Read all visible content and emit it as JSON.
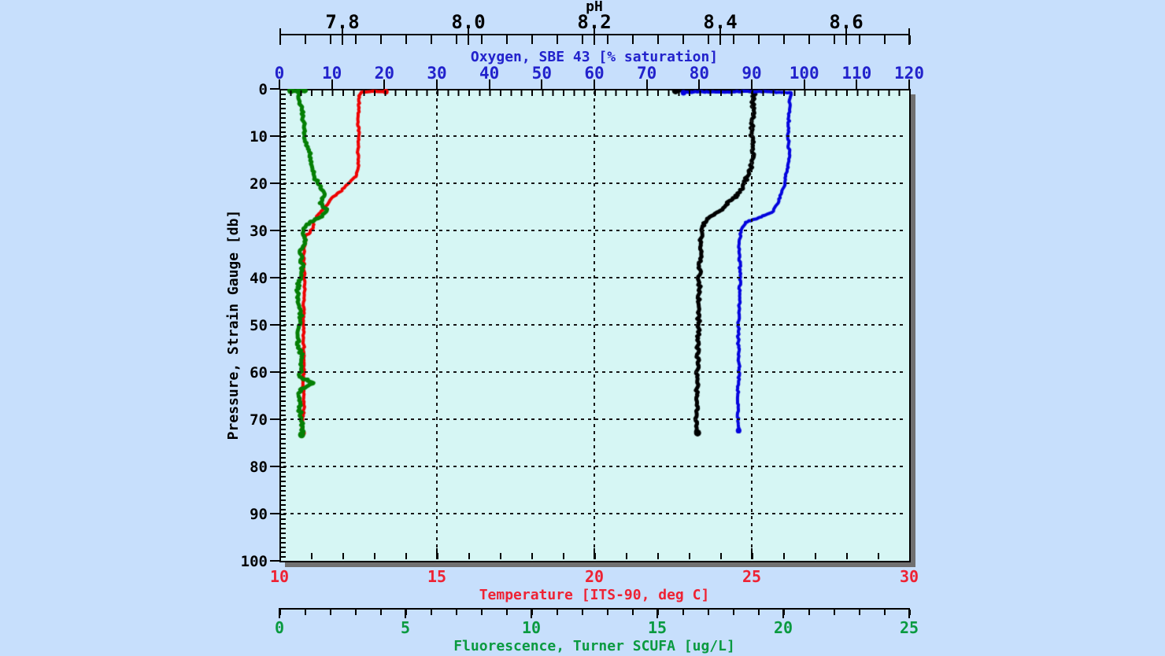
{
  "window": {
    "background": "#c7dffc",
    "plot_shadow_color": "#707070"
  },
  "chart_data": {
    "type": "line",
    "description": "CTD profile plot: four vertical profiles versus pressure",
    "plot_bg": "#d6f6f4",
    "grid": {
      "style": "dashed",
      "horizontal_pressure_lines": [
        10,
        20,
        30,
        40,
        50,
        60,
        70,
        80,
        90
      ],
      "vertical_temperature_lines": [
        15,
        20,
        25
      ]
    },
    "axes": {
      "pressure": {
        "title": "Pressure, Strain Gauge [db]",
        "side": "left",
        "min": 0,
        "max": 100,
        "inverted": true,
        "ticks": [
          0,
          10,
          20,
          30,
          40,
          50,
          60,
          70,
          80,
          90,
          100
        ],
        "tick_labels": [
          "0",
          "10",
          "20",
          "30",
          "40",
          "50",
          "60",
          "70",
          "80",
          "90",
          "100"
        ],
        "minor_step": 1,
        "color": "#000000"
      },
      "ph": {
        "title": "pH",
        "side": "top-outer",
        "min": 7.7,
        "max": 8.7,
        "ticks": [
          7.8,
          8.0,
          8.2,
          8.4,
          8.6
        ],
        "tick_labels": [
          "7.8",
          "8.0",
          "8.2",
          "8.4",
          "8.6"
        ],
        "minor_step": 0.04,
        "color": "#000000"
      },
      "oxygen": {
        "title": "Oxygen, SBE 43 [% saturation]",
        "side": "top",
        "min": 0,
        "max": 120,
        "ticks": [
          0,
          10,
          20,
          30,
          40,
          50,
          60,
          70,
          80,
          90,
          100,
          110,
          120
        ],
        "tick_labels": [
          "0",
          "10",
          "20",
          "30",
          "40",
          "50",
          "60",
          "70",
          "80",
          "90",
          "100",
          "110",
          "120"
        ],
        "minor_step": 2,
        "color": "#2222cc"
      },
      "temperature": {
        "title": "Temperature [ITS-90, deg C]",
        "side": "bottom",
        "min": 10,
        "max": 30,
        "ticks": [
          10,
          15,
          20,
          25,
          30
        ],
        "tick_labels": [
          "10",
          "15",
          "20",
          "25",
          "30"
        ],
        "minor_step": 1,
        "color": "#ee2233"
      },
      "fluorescence": {
        "title": "Fluorescence, Turner SCUFA [ug/L]",
        "side": "bottom-outer",
        "min": 0,
        "max": 25,
        "ticks": [
          0,
          5,
          10,
          15,
          20,
          25
        ],
        "tick_labels": [
          "0",
          "5",
          "10",
          "15",
          "20",
          "25"
        ],
        "minor_step": 1,
        "color": "#0a9a40"
      }
    },
    "series": [
      {
        "name": "Temperature",
        "x_axis": "temperature",
        "color": "#ee0000",
        "width": 4,
        "points": [
          [
            13.38,
            0.6
          ],
          [
            12.9,
            0.55
          ],
          [
            12.6,
            0.7
          ],
          [
            12.52,
            1.5
          ],
          [
            12.53,
            4.0
          ],
          [
            12.5,
            7.0
          ],
          [
            12.52,
            10.0
          ],
          [
            12.49,
            13.0
          ],
          [
            12.52,
            16.2
          ],
          [
            12.45,
            18.2
          ],
          [
            12.2,
            20.0
          ],
          [
            11.93,
            21.8
          ],
          [
            11.65,
            23.2
          ],
          [
            11.53,
            24.5
          ],
          [
            11.3,
            26.2
          ],
          [
            11.1,
            28.0
          ],
          [
            11.03,
            29.8
          ],
          [
            10.83,
            31.2
          ],
          [
            10.78,
            34.0
          ],
          [
            10.78,
            36.2
          ],
          [
            10.8,
            42.8
          ],
          [
            10.75,
            49.5
          ],
          [
            10.78,
            56.2
          ],
          [
            10.75,
            62.8
          ],
          [
            10.78,
            67.8
          ],
          [
            10.7,
            71.2
          ],
          [
            10.75,
            72.9
          ]
        ]
      },
      {
        "name": "Fluorescence",
        "x_axis": "fluorescence",
        "color": "#047f04",
        "width": 5,
        "points": [
          [
            0.45,
            0.35
          ],
          [
            1.05,
            0.4
          ],
          [
            0.7,
            0.6
          ],
          [
            0.75,
            2.0
          ],
          [
            0.88,
            4.5
          ],
          [
            0.97,
            8.2
          ],
          [
            1.0,
            10.0
          ],
          [
            1.13,
            12.3
          ],
          [
            1.2,
            14.0
          ],
          [
            1.28,
            16.2
          ],
          [
            1.35,
            18.0
          ],
          [
            1.5,
            19.8
          ],
          [
            1.62,
            21.0
          ],
          [
            1.8,
            22.3
          ],
          [
            1.6,
            24.2
          ],
          [
            1.88,
            25.8
          ],
          [
            1.7,
            26.8
          ],
          [
            1.4,
            27.8
          ],
          [
            1.05,
            29.0
          ],
          [
            0.95,
            29.8
          ],
          [
            1.05,
            32.0
          ],
          [
            0.8,
            34.5
          ],
          [
            0.9,
            37.0
          ],
          [
            0.88,
            39.5
          ],
          [
            0.72,
            42.0
          ],
          [
            0.75,
            44.5
          ],
          [
            0.85,
            47.0
          ],
          [
            0.84,
            49.5
          ],
          [
            0.72,
            52.0
          ],
          [
            0.76,
            54.5
          ],
          [
            0.9,
            57.0
          ],
          [
            0.86,
            59.5
          ],
          [
            0.8,
            61.0
          ],
          [
            1.35,
            62.3
          ],
          [
            0.82,
            63.7
          ],
          [
            0.78,
            66.0
          ],
          [
            0.8,
            67.8
          ],
          [
            0.85,
            70.0
          ],
          [
            0.92,
            72.0
          ],
          [
            0.88,
            73.3
          ]
        ]
      },
      {
        "name": "pH",
        "x_axis": "ph",
        "color": "#000000",
        "width": 5,
        "points": [
          [
            8.329,
            0.4
          ],
          [
            8.36,
            0.25
          ],
          [
            8.381,
            0.3
          ],
          [
            8.41,
            0.45
          ],
          [
            8.44,
            0.35
          ],
          [
            8.454,
            0.8
          ],
          [
            8.452,
            2.5
          ],
          [
            8.453,
            4.5
          ],
          [
            8.45,
            7.0
          ],
          [
            8.45,
            9.5
          ],
          [
            8.452,
            12.0
          ],
          [
            8.453,
            14.5
          ],
          [
            8.448,
            17.0
          ],
          [
            8.438,
            20.0
          ],
          [
            8.428,
            22.5
          ],
          [
            8.415,
            23.7
          ],
          [
            8.4,
            25.8
          ],
          [
            8.379,
            27.5
          ],
          [
            8.371,
            29.5
          ],
          [
            8.369,
            32.8
          ],
          [
            8.368,
            36.0
          ],
          [
            8.367,
            39.5
          ],
          [
            8.366,
            46.2
          ],
          [
            8.365,
            52.8
          ],
          [
            8.364,
            59.5
          ],
          [
            8.363,
            66.2
          ],
          [
            8.361,
            70.3
          ],
          [
            8.364,
            72.9
          ]
        ]
      },
      {
        "name": "Oxygen",
        "x_axis": "oxygen",
        "color": "#0404dd",
        "width": 4,
        "points": [
          [
            77.0,
            0.8
          ],
          [
            80.0,
            0.6
          ],
          [
            84.8,
            0.7
          ],
          [
            89.0,
            0.5
          ],
          [
            93.0,
            0.6
          ],
          [
            97.5,
            0.8
          ],
          [
            97.3,
            2.0
          ],
          [
            97.2,
            4.5
          ],
          [
            96.9,
            9.5
          ],
          [
            97.2,
            14.5
          ],
          [
            96.6,
            17.8
          ],
          [
            96.3,
            20.0
          ],
          [
            95.6,
            22.3
          ],
          [
            94.8,
            24.5
          ],
          [
            93.8,
            26.2
          ],
          [
            91.5,
            27.2
          ],
          [
            88.8,
            28.3
          ],
          [
            87.9,
            30.0
          ],
          [
            87.6,
            32.8
          ],
          [
            87.8,
            39.5
          ],
          [
            87.6,
            46.2
          ],
          [
            87.4,
            52.8
          ],
          [
            87.6,
            59.5
          ],
          [
            87.3,
            66.2
          ],
          [
            87.5,
            72.4
          ]
        ]
      }
    ]
  }
}
